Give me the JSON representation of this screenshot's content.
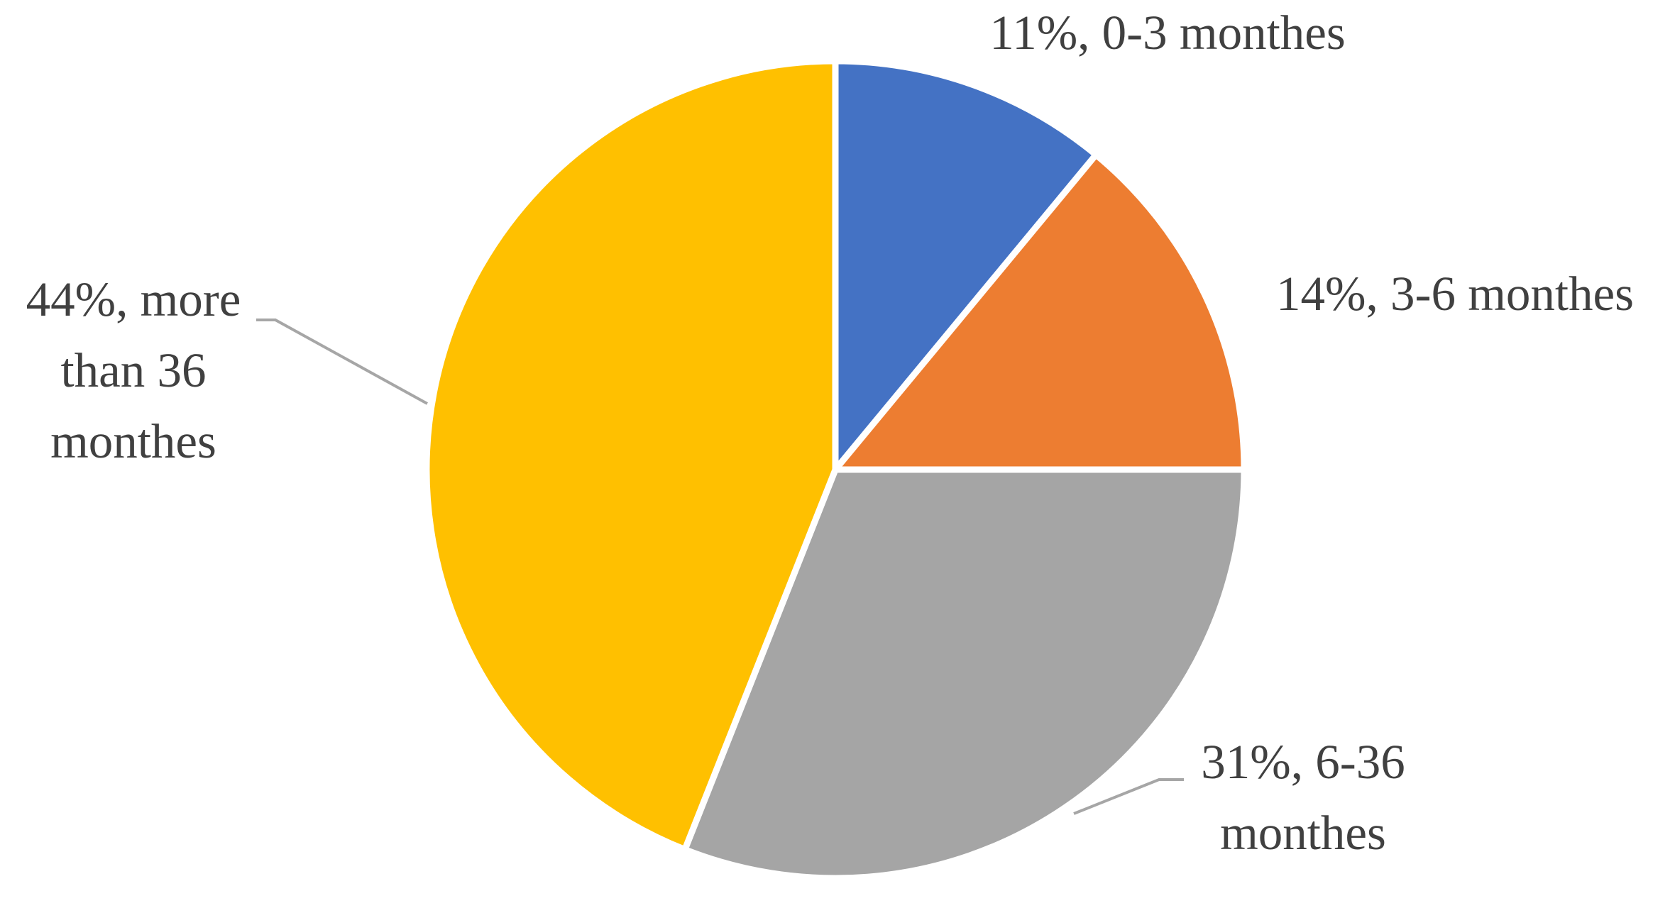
{
  "chart_data": {
    "type": "pie",
    "values": [
      11,
      14,
      31,
      44
    ],
    "value_labels": [
      "11%, 0-3 monthes",
      "14%, 3-6 monthes",
      "31%, 6-36 monthes",
      "44%, more than 36 monthes"
    ],
    "colors": [
      "#4472c4",
      "#ed7d31",
      "#a5a5a5",
      "#ffc000"
    ]
  }
}
